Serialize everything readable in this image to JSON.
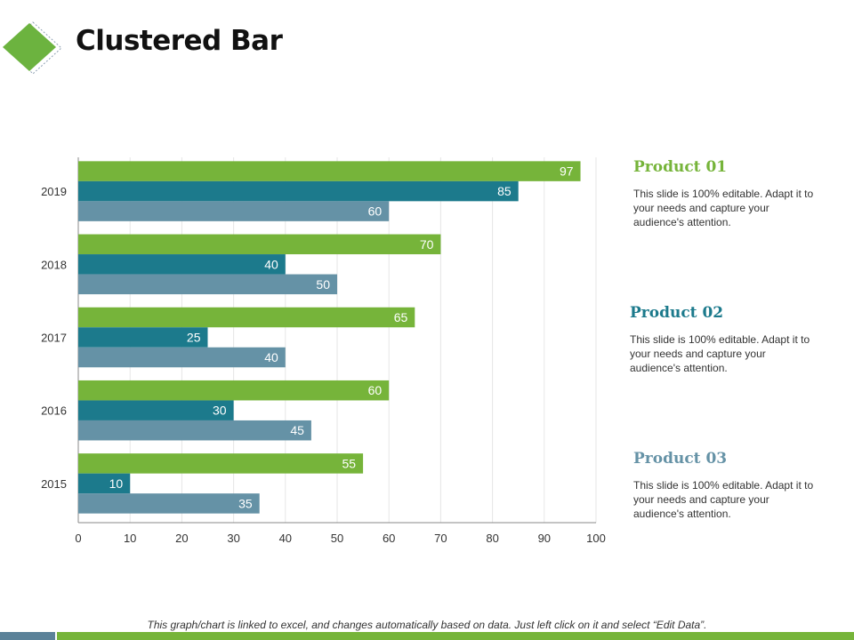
{
  "header": {
    "title": "Clustered Bar"
  },
  "colors": {
    "green": "#76b43a",
    "teal": "#1c7a8c",
    "slate": "#6592a6",
    "logo_green": "#6cb33f",
    "logo_outline": "#8fa1b3",
    "bottom_left": "#5b8299",
    "bottom_right": "#76b43a"
  },
  "chart_data": {
    "type": "bar",
    "orientation": "horizontal",
    "title": "",
    "xlabel": "",
    "ylabel": "",
    "categories": [
      "2019",
      "2018",
      "2017",
      "2016",
      "2015"
    ],
    "series": [
      {
        "name": "Product 01",
        "values": [
          97,
          70,
          65,
          60,
          55
        ]
      },
      {
        "name": "Product 02",
        "values": [
          85,
          40,
          25,
          30,
          10
        ]
      },
      {
        "name": "Product 03",
        "values": [
          60,
          50,
          40,
          45,
          35
        ]
      }
    ],
    "xlim": [
      0,
      100
    ],
    "xticks": [
      "0",
      "10",
      "20",
      "30",
      "40",
      "50",
      "60",
      "70",
      "80",
      "90",
      "100"
    ],
    "grid": "vertical",
    "data_labels": true,
    "legend": "right"
  },
  "products": [
    {
      "title": "Product 01",
      "text": "This slide is 100% editable. Adapt it to your needs and capture your audience's attention."
    },
    {
      "title": "Product 02",
      "text": "This slide is 100% editable. Adapt it to your needs and capture your audience's attention."
    },
    {
      "title": "Product 03",
      "text": "This slide is 100% editable. Adapt it to your needs and capture your audience's attention."
    }
  ],
  "footnote": "This graph/chart is linked to excel, and changes automatically  based on data.  Just left click on it and select “Edit Data”."
}
